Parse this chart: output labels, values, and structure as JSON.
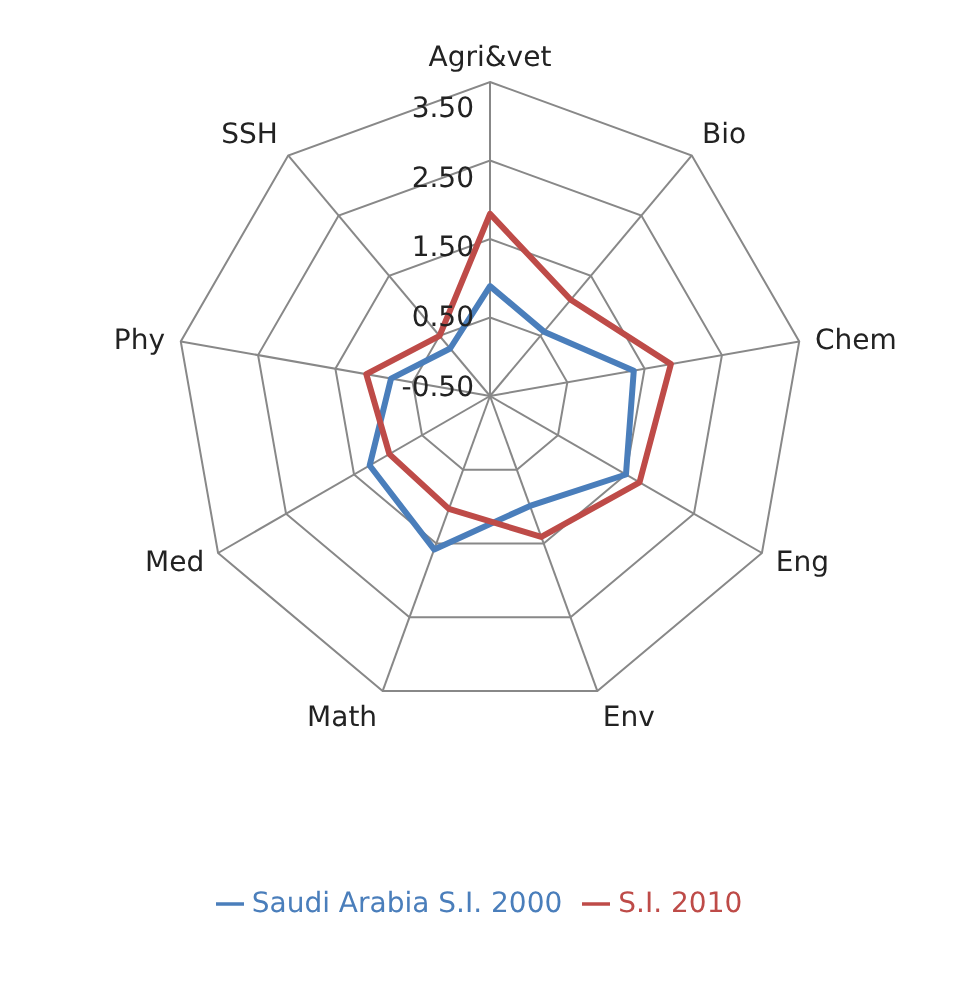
{
  "chart_data": {
    "type": "radar",
    "categories": [
      "Agri&vet",
      "Bio",
      "Chem",
      "Eng",
      "Env",
      "Math",
      "Med",
      "Phy",
      "SSH"
    ],
    "series": [
      {
        "name": "Saudi Arabia S.I. 2000",
        "color": "#4a7ebb",
        "values": [
          0.9,
          0.57,
          1.36,
          1.5,
          0.99,
          1.58,
          1.27,
          0.78,
          0.29
        ]
      },
      {
        "name": "S.I. 2010",
        "color": "#be4b48",
        "values": [
          1.82,
          1.1,
          1.84,
          1.7,
          1.41,
          1.03,
          0.98,
          1.1,
          0.5
        ]
      }
    ],
    "ylim": [
      -0.5,
      3.5
    ],
    "yticks": [
      {
        "value": -0.5,
        "label": "-0.50"
      },
      {
        "value": 0.5,
        "label": "0.50"
      },
      {
        "value": 1.5,
        "label": "1.50"
      },
      {
        "value": 2.5,
        "label": "2.50"
      },
      {
        "value": 3.5,
        "label": "3.50"
      }
    ],
    "grid": true,
    "legend": "bottom"
  }
}
